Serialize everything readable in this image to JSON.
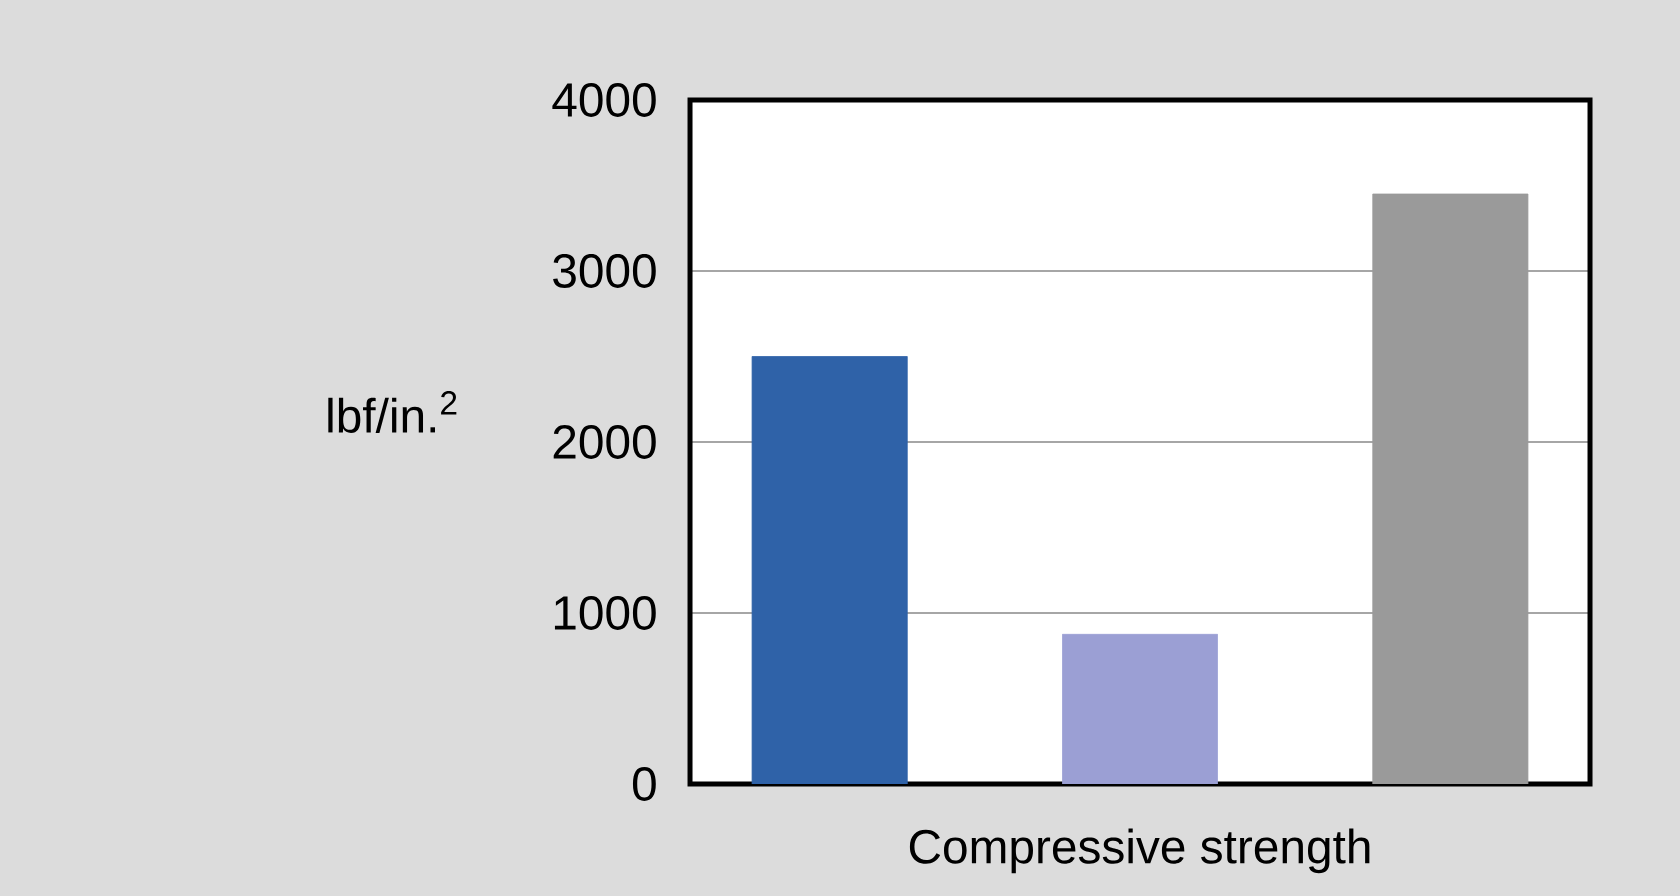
{
  "chart_data": {
    "type": "bar",
    "xlabel": "Compressive strength",
    "ylabel": "lbf/in.$^{2}$",
    "categories": [
      null,
      null,
      null
    ],
    "values": [
      2500,
      875,
      3450
    ],
    "colors": [
      "#2f62a8",
      "#9b9fd4",
      "#9a9a9a"
    ],
    "ylim": [
      0,
      4000
    ],
    "yticks": [
      0,
      1000,
      2000,
      3000,
      4000
    ],
    "grid": "y"
  }
}
